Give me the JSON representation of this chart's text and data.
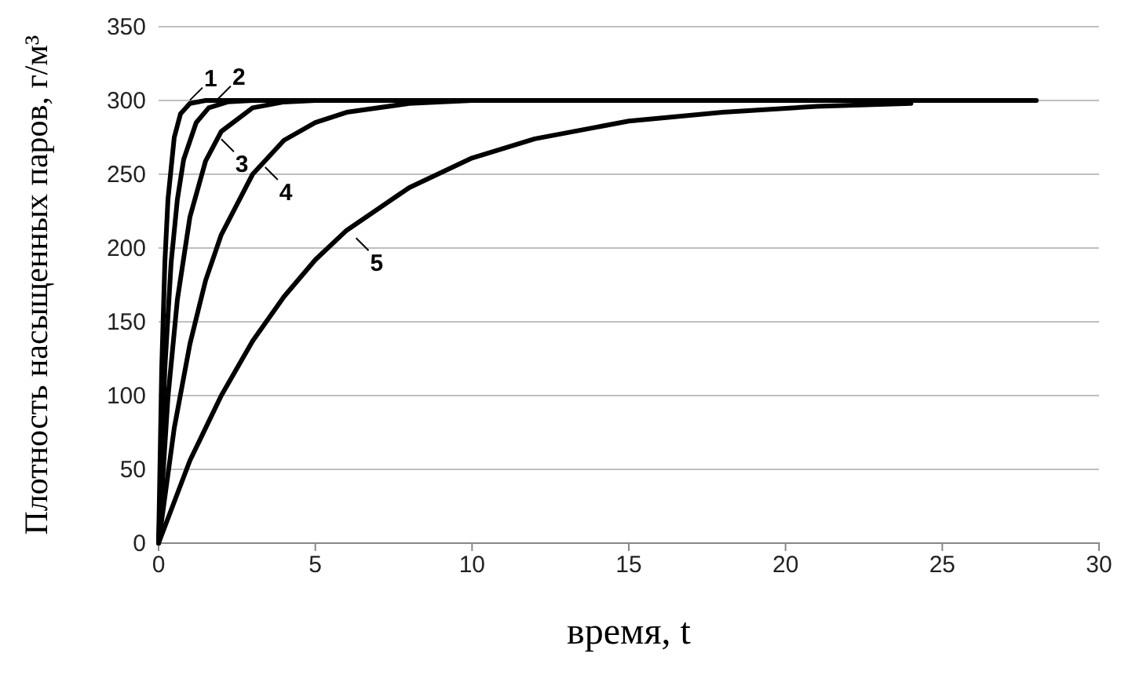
{
  "chart_data": {
    "type": "line",
    "xlabel": "время, t",
    "ylabel": "Плотность насыщенных паров, г/м³",
    "xlim": [
      0,
      30
    ],
    "ylim": [
      0,
      350
    ],
    "xticks": [
      0,
      5,
      10,
      15,
      20,
      25,
      30
    ],
    "yticks": [
      0,
      50,
      100,
      150,
      200,
      250,
      300,
      350
    ],
    "grid": "y",
    "marker": "none",
    "line_style": "solid",
    "series": [
      {
        "color": "#000000",
        "x": [
          0,
          0.1,
          0.2,
          0.3,
          0.5,
          0.7,
          1,
          1.5,
          28
        ],
        "values": [
          0,
          118,
          190,
          233,
          275,
          291,
          298,
          300,
          300
        ]
      },
      {
        "color": "#000000",
        "x": [
          0,
          0.2,
          0.4,
          0.6,
          0.8,
          1.2,
          1.6,
          2.2,
          3
        ],
        "values": [
          0,
          118,
          190,
          233,
          260,
          285,
          295,
          299,
          300
        ]
      },
      {
        "color": "#000000",
        "x": [
          0,
          0.3,
          0.6,
          1,
          1.5,
          2,
          3,
          4,
          5
        ],
        "values": [
          0,
          99,
          165,
          221,
          259,
          279,
          295,
          299,
          300
        ]
      },
      {
        "color": "#000000",
        "x": [
          0,
          0.5,
          1,
          1.5,
          2,
          3,
          4,
          5,
          6,
          8,
          10
        ],
        "values": [
          0,
          78,
          135,
          178,
          209,
          250,
          273,
          285,
          292,
          298,
          300
        ]
      },
      {
        "color": "#000000",
        "x": [
          0,
          1,
          2,
          3,
          4,
          5,
          6,
          8,
          10,
          12,
          15,
          18,
          21,
          24
        ],
        "values": [
          0,
          56,
          100,
          137,
          167,
          192,
          212,
          241,
          261,
          274,
          286,
          292,
          296,
          298
        ]
      }
    ],
    "annotations": [
      {
        "text": "1",
        "x": 0.9,
        "y": 297
      },
      {
        "text": "2",
        "x": 1.8,
        "y": 298
      },
      {
        "text": "3",
        "x": 1.9,
        "y": 277
      },
      {
        "text": "4",
        "x": 3.3,
        "y": 258
      },
      {
        "text": "5",
        "x": 6.2,
        "y": 210
      }
    ]
  }
}
